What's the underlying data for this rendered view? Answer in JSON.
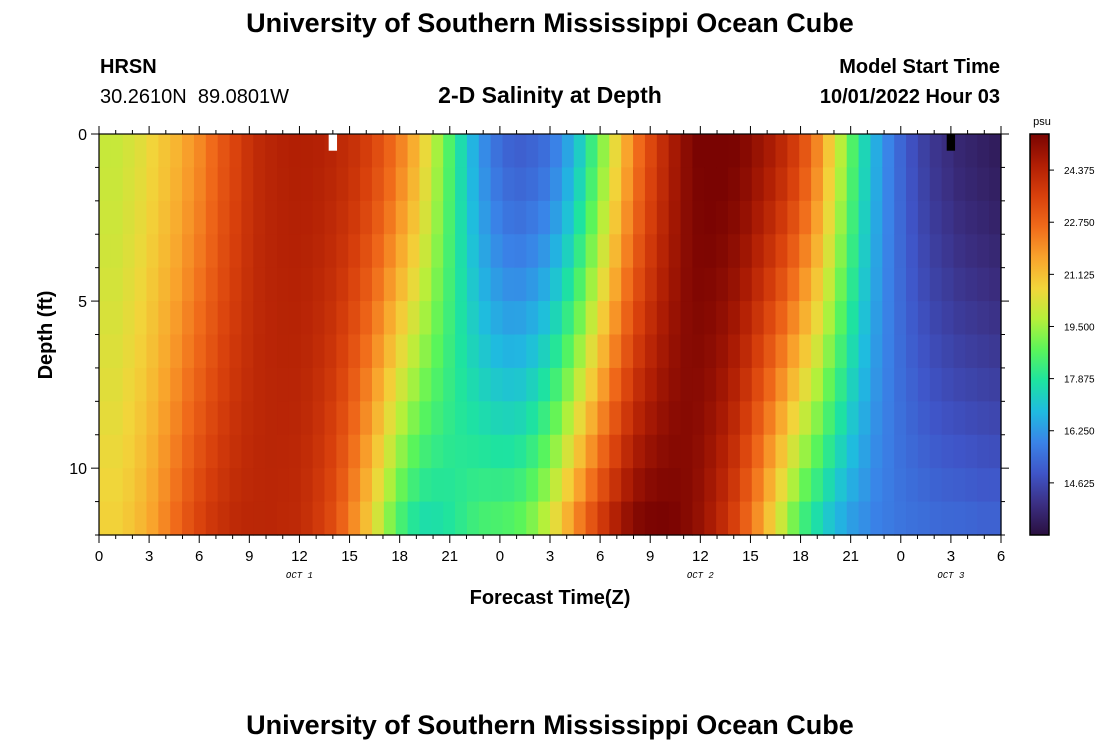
{
  "header": {
    "title": "University of Southern Mississippi Ocean Cube",
    "station": "HRSN",
    "coords": "30.2610N  89.0801W",
    "plot_title": "2-D Salinity at Depth",
    "model_label": "Model Start Time",
    "model_time": "10/01/2022 Hour 03"
  },
  "footer": {
    "title": "University of Southern Mississippi Ocean Cube"
  },
  "chart_data": {
    "type": "heatmap",
    "title": "2-D Salinity at Depth",
    "xlabel": "Forecast Time(Z)",
    "ylabel": "Depth (ft)",
    "x_hours_range": [
      0,
      54
    ],
    "ylim": [
      0,
      12
    ],
    "x_tick_labels": [
      "0",
      "3",
      "6",
      "9",
      "12",
      "15",
      "18",
      "21",
      "0",
      "3",
      "6",
      "9",
      "12",
      "15",
      "18",
      "21",
      "0",
      "3",
      "6"
    ],
    "y_tick_labels": [
      "0",
      "5",
      "10"
    ],
    "y_tick_values": [
      0,
      5,
      10
    ],
    "day_labels": [
      {
        "text": "OCT 1",
        "hour": 12
      },
      {
        "text": "OCT 2",
        "hour": 36
      },
      {
        "text": "OCT 3",
        "hour": 51
      }
    ],
    "colorbar": {
      "unit": "psu",
      "range": [
        13.0,
        25.5
      ],
      "tick_values": [
        24.375,
        22.75,
        21.125,
        19.5,
        17.875,
        16.25,
        14.625
      ],
      "tick_labels": [
        "24.375",
        "22.750",
        "21.125",
        "19.500",
        "17.875",
        "16.250",
        "14.625"
      ],
      "colors": [
        "#2a0f3f",
        "#3b2f83",
        "#3f55c8",
        "#3a83e8",
        "#1fbbe0",
        "#1ee3a0",
        "#5af55a",
        "#b5f03a",
        "#f2d53a",
        "#f9a32c",
        "#f06a1a",
        "#d8400c",
        "#b01e04",
        "#7a0402"
      ]
    },
    "surface_profile_psu": [
      20.0,
      20.0,
      20.2,
      20.4,
      20.7,
      21.0,
      21.3,
      21.7,
      22.1,
      22.6,
      23.1,
      23.5,
      23.9,
      24.2,
      24.35,
      24.45,
      24.5,
      24.5,
      24.45,
      24.35,
      24.2,
      24.0,
      23.7,
      23.3,
      22.8,
      22.2,
      21.5,
      20.6,
      19.6,
      18.6,
      17.6,
      16.7,
      16.0,
      15.5,
      15.2,
      15.1,
      15.2,
      15.4,
      15.8,
      16.4,
      17.2,
      18.2,
      19.3,
      20.5,
      21.6,
      22.6,
      23.4,
      24.1,
      24.7,
      25.2,
      25.5,
      25.6,
      25.6,
      25.5,
      25.3,
      25.0,
      24.7,
      24.3,
      23.8,
      23.1,
      22.2,
      21.0,
      19.8,
      18.6,
      17.5,
      16.6,
      15.9,
      15.3,
      14.8,
      14.4,
      14.1,
      13.9,
      13.7,
      13.6,
      13.5,
      13.4
    ],
    "bottom_profile_psu": [
      20.8,
      20.8,
      21.0,
      21.3,
      21.7,
      22.2,
      22.7,
      23.2,
      23.6,
      23.9,
      24.1,
      24.25,
      24.3,
      24.3,
      24.3,
      24.25,
      24.2,
      24.0,
      23.7,
      23.3,
      22.7,
      21.9,
      21.0,
      20.0,
      19.0,
      18.2,
      17.7,
      17.5,
      17.6,
      17.8,
      18.1,
      18.4,
      18.6,
      18.7,
      18.8,
      19.0,
      19.4,
      20.0,
      20.8,
      21.7,
      22.6,
      23.4,
      24.1,
      24.7,
      25.2,
      25.5,
      25.6,
      25.6,
      25.5,
      25.3,
      25.0,
      24.6,
      24.1,
      23.5,
      22.7,
      21.8,
      20.8,
      19.8,
      18.8,
      18.0,
      17.4,
      16.9,
      16.5,
      16.2,
      16.0,
      15.8,
      15.7,
      15.6,
      15.55,
      15.5,
      15.45,
      15.4,
      15.4,
      15.35,
      15.3,
      15.3
    ],
    "missing_markers": [
      {
        "hour": 14,
        "depth_range": [
          0,
          0.5
        ],
        "color": "#ffffff"
      },
      {
        "hour": 51,
        "depth_range": [
          0,
          0.5
        ],
        "color": "#000000"
      }
    ]
  }
}
